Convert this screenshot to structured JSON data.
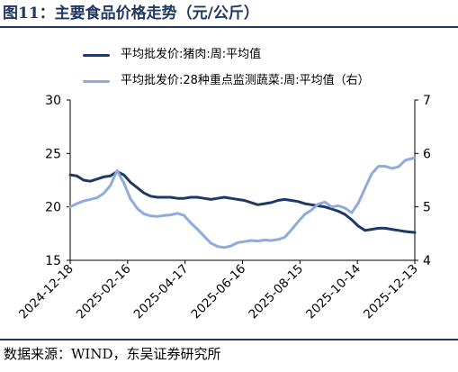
{
  "figure": {
    "title": "图11：主要食品价格走势（元/公斤）",
    "source": "数据来源：WIND，东吴证券研究所"
  },
  "chart_data": {
    "type": "line",
    "x_ticks": [
      "2024-12-18",
      "2025-02-16",
      "2025-04-17",
      "2025-06-16",
      "2025-08-15",
      "2025-10-14",
      "2025-12-13"
    ],
    "x_range": [
      "2024-12-18",
      "2025-12-13"
    ],
    "y_left": {
      "ticks": [
        15,
        20,
        25,
        30
      ],
      "range": [
        15,
        30
      ]
    },
    "y_right": {
      "ticks": [
        4,
        5,
        6,
        7
      ],
      "range": [
        4,
        7
      ]
    },
    "grid": false,
    "legend_position": "top-left",
    "series": [
      {
        "name": "平均批发价:猪肉:周:平均值",
        "axis": "left",
        "color": "#1f3864",
        "points": [
          [
            "2024-12-18",
            23.0
          ],
          [
            "2024-12-25",
            22.9
          ],
          [
            "2025-01-01",
            22.5
          ],
          [
            "2025-01-08",
            22.4
          ],
          [
            "2025-01-15",
            22.6
          ],
          [
            "2025-01-22",
            22.8
          ],
          [
            "2025-01-29",
            22.9
          ],
          [
            "2025-02-05",
            23.3
          ],
          [
            "2025-02-12",
            23.0
          ],
          [
            "2025-02-19",
            22.3
          ],
          [
            "2025-02-26",
            21.8
          ],
          [
            "2025-03-05",
            21.3
          ],
          [
            "2025-03-12",
            21.0
          ],
          [
            "2025-03-19",
            20.9
          ],
          [
            "2025-03-26",
            20.9
          ],
          [
            "2025-04-02",
            20.9
          ],
          [
            "2025-04-09",
            20.8
          ],
          [
            "2025-04-16",
            20.8
          ],
          [
            "2025-04-23",
            20.9
          ],
          [
            "2025-04-30",
            20.9
          ],
          [
            "2025-05-07",
            20.8
          ],
          [
            "2025-05-14",
            20.7
          ],
          [
            "2025-05-21",
            20.8
          ],
          [
            "2025-05-28",
            20.9
          ],
          [
            "2025-06-04",
            20.8
          ],
          [
            "2025-06-11",
            20.7
          ],
          [
            "2025-06-18",
            20.6
          ],
          [
            "2025-06-25",
            20.4
          ],
          [
            "2025-07-02",
            20.2
          ],
          [
            "2025-07-09",
            20.3
          ],
          [
            "2025-07-16",
            20.4
          ],
          [
            "2025-07-23",
            20.6
          ],
          [
            "2025-07-30",
            20.7
          ],
          [
            "2025-08-06",
            20.6
          ],
          [
            "2025-08-13",
            20.5
          ],
          [
            "2025-08-20",
            20.3
          ],
          [
            "2025-08-27",
            20.2
          ],
          [
            "2025-09-03",
            20.1
          ],
          [
            "2025-09-10",
            20.0
          ],
          [
            "2025-09-17",
            19.8
          ],
          [
            "2025-09-24",
            19.6
          ],
          [
            "2025-10-01",
            19.3
          ],
          [
            "2025-10-08",
            18.8
          ],
          [
            "2025-10-15",
            18.2
          ],
          [
            "2025-10-22",
            17.8
          ],
          [
            "2025-10-29",
            17.9
          ],
          [
            "2025-11-05",
            18.0
          ],
          [
            "2025-11-12",
            18.0
          ],
          [
            "2025-11-19",
            17.9
          ],
          [
            "2025-11-26",
            17.8
          ],
          [
            "2025-12-03",
            17.7
          ],
          [
            "2025-12-13",
            17.6
          ]
        ]
      },
      {
        "name": "平均批发价:28种重点监测蔬菜:周:平均值（右）",
        "axis": "right",
        "color": "#8faadc",
        "points": [
          [
            "2024-12-18",
            5.0
          ],
          [
            "2024-12-25",
            5.06
          ],
          [
            "2025-01-01",
            5.11
          ],
          [
            "2025-01-08",
            5.14
          ],
          [
            "2025-01-15",
            5.17
          ],
          [
            "2025-01-22",
            5.25
          ],
          [
            "2025-01-29",
            5.4
          ],
          [
            "2025-02-05",
            5.68
          ],
          [
            "2025-02-12",
            5.45
          ],
          [
            "2025-02-19",
            5.15
          ],
          [
            "2025-02-26",
            4.97
          ],
          [
            "2025-03-05",
            4.87
          ],
          [
            "2025-03-12",
            4.83
          ],
          [
            "2025-03-19",
            4.82
          ],
          [
            "2025-03-26",
            4.84
          ],
          [
            "2025-04-02",
            4.85
          ],
          [
            "2025-04-09",
            4.88
          ],
          [
            "2025-04-16",
            4.84
          ],
          [
            "2025-04-23",
            4.7
          ],
          [
            "2025-04-30",
            4.58
          ],
          [
            "2025-05-07",
            4.45
          ],
          [
            "2025-05-14",
            4.32
          ],
          [
            "2025-05-21",
            4.26
          ],
          [
            "2025-05-28",
            4.24
          ],
          [
            "2025-06-04",
            4.27
          ],
          [
            "2025-06-11",
            4.33
          ],
          [
            "2025-06-18",
            4.35
          ],
          [
            "2025-06-25",
            4.37
          ],
          [
            "2025-07-02",
            4.36
          ],
          [
            "2025-07-09",
            4.38
          ],
          [
            "2025-07-16",
            4.37
          ],
          [
            "2025-07-23",
            4.39
          ],
          [
            "2025-07-30",
            4.43
          ],
          [
            "2025-08-06",
            4.57
          ],
          [
            "2025-08-13",
            4.72
          ],
          [
            "2025-08-20",
            4.86
          ],
          [
            "2025-08-27",
            4.94
          ],
          [
            "2025-09-03",
            5.05
          ],
          [
            "2025-09-10",
            5.09
          ],
          [
            "2025-09-17",
            5.0
          ],
          [
            "2025-09-24",
            5.02
          ],
          [
            "2025-10-01",
            4.98
          ],
          [
            "2025-10-08",
            4.89
          ],
          [
            "2025-10-15",
            5.07
          ],
          [
            "2025-10-22",
            5.35
          ],
          [
            "2025-10-29",
            5.62
          ],
          [
            "2025-11-05",
            5.76
          ],
          [
            "2025-11-12",
            5.76
          ],
          [
            "2025-11-19",
            5.72
          ],
          [
            "2025-11-26",
            5.75
          ],
          [
            "2025-12-03",
            5.87
          ],
          [
            "2025-12-13",
            5.92
          ]
        ]
      }
    ]
  }
}
